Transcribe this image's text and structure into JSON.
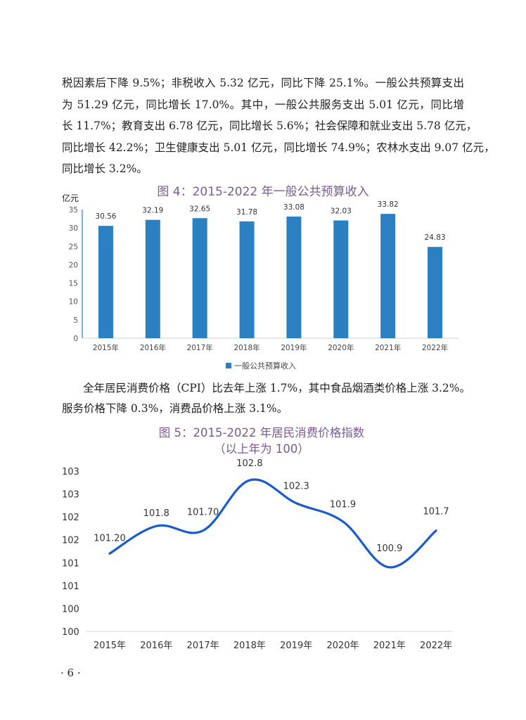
{
  "paragraph1": [
    "税因素后下降 9.5%；非税收入 5.32 亿元，同比下降 25.1%。一般公共预算支出",
    "为 51.29 亿元，同比增长 17.0%。其中，一般公共服务支出 5.01 亿元，同比增",
    "长 11.7%；教育支出 6.78 亿元，同比增长 5.6%；社会保障和就业支出 5.78 亿元，",
    "同比增长 42.2%；卫生健康支出 5.01 亿元，同比增长 74.9%；农林水支出 9.07 亿元，",
    "同比增长 3.2%。"
  ],
  "paragraph2": [
    "全年居民消费价格（CPI）比去年上涨 1.7%，其中食品烟酒类价格上涨 3.2%。",
    "服务价格下降 0.3%，消费品价格上涨 3.1%。"
  ],
  "page_number": "· 6 ·",
  "chart_data": [
    {
      "type": "bar",
      "title": "图 4：2015-2022 年一般公共预算收入",
      "ylabel": "亿元",
      "categories": [
        "2015年",
        "2016年",
        "2017年",
        "2018年",
        "2019年",
        "2020年",
        "2021年",
        "2022年"
      ],
      "series": [
        {
          "name": "一般公共预算收入",
          "values": [
            30.56,
            32.19,
            32.65,
            31.78,
            33.08,
            32.03,
            33.82,
            24.83
          ]
        }
      ],
      "data_labels": [
        "30.56",
        "32.19",
        "32.65",
        "31.78",
        "33.08",
        "32.03",
        "33.82",
        "24.83"
      ],
      "yticks": [
        "0",
        "5",
        "10",
        "15",
        "20",
        "25",
        "30",
        "35"
      ],
      "ylim": [
        0,
        35
      ],
      "grid": false,
      "legend": "bottom",
      "color": "#2a80c0"
    },
    {
      "type": "line",
      "title": "图 5：2015-2022 年居民消费价格指数",
      "subtitle": "（以上年为 100）",
      "categories": [
        "2015年",
        "2016年",
        "2017年",
        "2018年",
        "2019年",
        "2020年",
        "2021年",
        "2022年"
      ],
      "values": [
        101.2,
        101.8,
        101.7,
        102.8,
        102.3,
        101.9,
        100.9,
        101.7
      ],
      "data_labels": [
        "101.20",
        "101.8",
        "101.70",
        "102.8",
        "102.3",
        "101.9",
        "100.9",
        "101.7"
      ],
      "yticks": [
        "100",
        "100",
        "101",
        "101",
        "102",
        "102",
        "103",
        "103"
      ],
      "ylim": [
        99.5,
        103
      ],
      "smooth": true,
      "grid": false,
      "color": "#1a5cc8"
    }
  ],
  "colors": {
    "title": "#7b5b97",
    "text": "#222222"
  }
}
